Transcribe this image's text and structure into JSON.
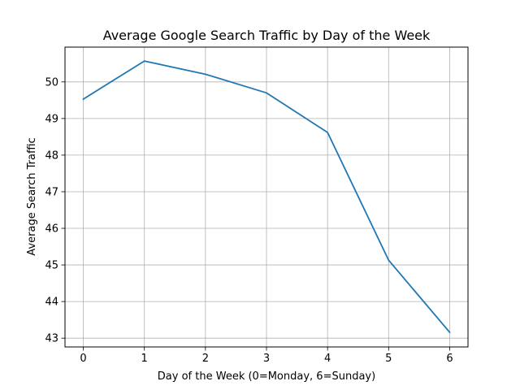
{
  "chart_data": {
    "type": "line",
    "title": "Average Google Search Traffic by Day of the Week",
    "xlabel": "Day of the Week (0=Monday, 6=Sunday)",
    "ylabel": "Average Search Traffic",
    "x": [
      0,
      1,
      2,
      3,
      4,
      5,
      6
    ],
    "xticks": [
      0,
      1,
      2,
      3,
      4,
      5,
      6
    ],
    "yticks": [
      43,
      44,
      45,
      46,
      47,
      48,
      49,
      50
    ],
    "xlim": [
      -0.3,
      6.3
    ],
    "ylim": [
      42.76,
      50.95
    ],
    "grid": true,
    "series": [
      {
        "values": [
          49.53,
          50.57,
          50.21,
          49.7,
          48.62,
          45.13,
          43.16
        ],
        "color": "#1f77b4"
      }
    ]
  }
}
